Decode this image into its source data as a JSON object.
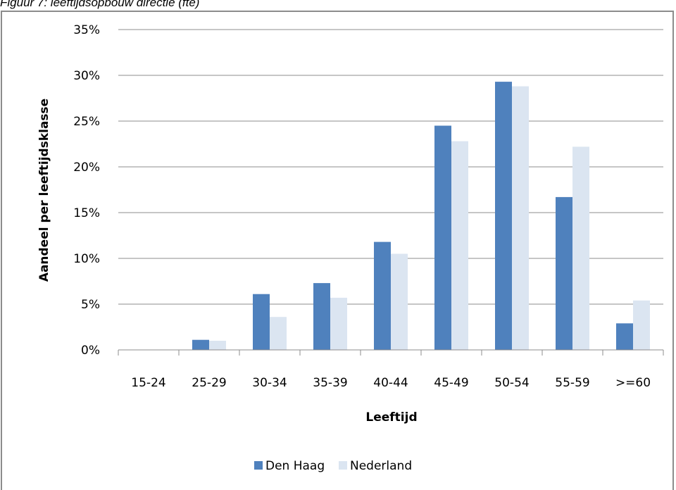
{
  "caption": "Figuur 7: leeftijdsopbouw directie (fte)",
  "chart_data": {
    "type": "bar",
    "categories": [
      "15-24",
      "25-29",
      "30-34",
      "35-39",
      "40-44",
      "45-49",
      "50-54",
      "55-59",
      ">=60"
    ],
    "series": [
      {
        "name": "Den Haag",
        "color": "#4f81bd",
        "values": [
          0,
          1.1,
          6.1,
          7.3,
          11.8,
          24.5,
          29.3,
          16.7,
          2.9
        ]
      },
      {
        "name": "Nederland",
        "color": "#dbe5f1",
        "values": [
          0,
          1.0,
          3.6,
          5.7,
          10.5,
          22.8,
          28.8,
          22.2,
          5.4
        ]
      }
    ],
    "xlabel": "Leeftijd",
    "ylabel": "Aandeel per leeftijdsklasse",
    "ylim": [
      0,
      35
    ],
    "yticks": [
      "0%",
      "5%",
      "10%",
      "15%",
      "20%",
      "25%",
      "30%",
      "35%"
    ],
    "grid": true,
    "legend_position": "bottom"
  }
}
